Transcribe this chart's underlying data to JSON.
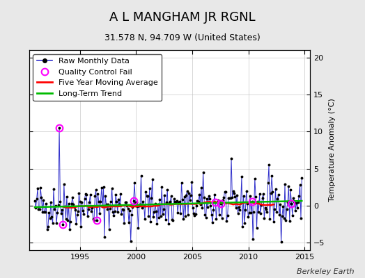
{
  "title": "A L MANGHAM JR RGNL",
  "subtitle": "31.578 N, 94.709 W (United States)",
  "ylabel": "Temperature Anomaly (°C)",
  "watermark": "Berkeley Earth",
  "xlim": [
    1990.5,
    2015.5
  ],
  "ylim": [
    -6,
    21
  ],
  "yticks": [
    -5,
    0,
    5,
    10,
    15,
    20
  ],
  "xticks": [
    1995,
    2000,
    2005,
    2010,
    2015
  ],
  "background_color": "#e8e8e8",
  "plot_bg_color": "#ffffff",
  "raw_color": "#3333cc",
  "dot_color": "#000000",
  "qc_color": "#ff00ff",
  "moving_avg_color": "#ff0000",
  "trend_color": "#00bb00",
  "title_fontsize": 13,
  "subtitle_fontsize": 9,
  "axis_fontsize": 8,
  "tick_fontsize": 8,
  "legend_fontsize": 8
}
